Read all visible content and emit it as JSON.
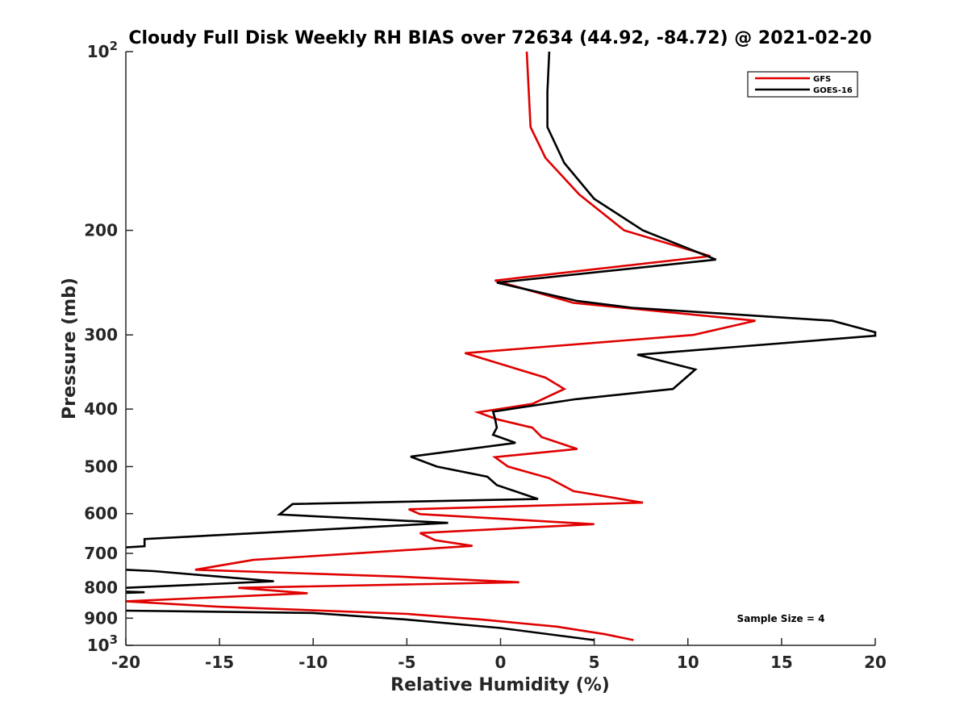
{
  "chart_data": {
    "type": "line",
    "title": "Cloudy Full Disk Weekly RH BIAS over 72634 (44.92, -84.72) @ 2021-02-20",
    "xlabel": "Relative Humidity (%)",
    "ylabel": "Pressure (mb)",
    "xlim": [
      -20,
      20
    ],
    "ylim": [
      100,
      1000
    ],
    "y_scale": "log",
    "y_reversed": true,
    "grid": false,
    "legend_position": "top-right",
    "x_ticks": [
      "-20",
      "-15",
      "-10",
      "-5",
      "0",
      "5",
      "10",
      "15",
      "20"
    ],
    "y_ticks": [
      {
        "value": 100,
        "base": "10",
        "exp": "2"
      },
      {
        "value": 200,
        "label": "200"
      },
      {
        "value": 300,
        "label": "300"
      },
      {
        "value": 400,
        "label": "400"
      },
      {
        "value": 500,
        "label": "500"
      },
      {
        "value": 600,
        "label": "600"
      },
      {
        "value": 700,
        "label": "700"
      },
      {
        "value": 800,
        "label": "800"
      },
      {
        "value": 900,
        "label": "900"
      },
      {
        "value": 1000,
        "base": "10",
        "exp": "3"
      }
    ],
    "annotation": "Sample Size = 4",
    "series": [
      {
        "name": "GFS",
        "color": "#e00000",
        "points": [
          [
            1.4,
            100
          ],
          [
            1.6,
            134
          ],
          [
            2.4,
            151
          ],
          [
            4.2,
            174
          ],
          [
            6.6,
            200
          ],
          [
            11.2,
            221
          ],
          [
            -0.3,
            243
          ],
          [
            3.9,
            265
          ],
          [
            13.6,
            284
          ],
          [
            10.3,
            300
          ],
          [
            -1.9,
            322
          ],
          [
            2.4,
            354
          ],
          [
            3.4,
            370
          ],
          [
            1.7,
            392
          ],
          [
            -1.2,
            405
          ],
          [
            -0.2,
            416
          ],
          [
            1.7,
            430
          ],
          [
            2.2,
            446
          ],
          [
            4.1,
            467
          ],
          [
            -0.3,
            482
          ],
          [
            0.4,
            500
          ],
          [
            2.6,
            523
          ],
          [
            3.9,
            550
          ],
          [
            7.6,
            575
          ],
          [
            -4.9,
            590
          ],
          [
            -4.3,
            601
          ],
          [
            5.0,
            625
          ],
          [
            -4.3,
            647
          ],
          [
            -3.5,
            665
          ],
          [
            -1.5,
            680
          ],
          [
            -13.2,
            718
          ],
          [
            -16.3,
            746
          ],
          [
            -5.4,
            766
          ],
          [
            1.0,
            783
          ],
          [
            -14.0,
            800
          ],
          [
            -10.3,
            817
          ],
          [
            -20.0,
            843
          ],
          [
            -15.0,
            861
          ],
          [
            -5.0,
            885
          ],
          [
            -1.0,
            905
          ],
          [
            3.0,
            930
          ],
          [
            5.6,
            958
          ],
          [
            7.1,
            980
          ]
        ]
      },
      {
        "name": "GOES-16",
        "color": "#000000",
        "points": [
          [
            2.6,
            100
          ],
          [
            2.5,
            117
          ],
          [
            2.5,
            134
          ],
          [
            3.4,
            154
          ],
          [
            5.0,
            177
          ],
          [
            7.6,
            200
          ],
          [
            11.5,
            224
          ],
          [
            -0.2,
            245
          ],
          [
            4.1,
            263
          ],
          [
            7.0,
            270
          ],
          [
            17.7,
            284
          ],
          [
            20.0,
            297
          ],
          [
            20.0,
            301
          ],
          [
            7.3,
            324
          ],
          [
            10.4,
            343
          ],
          [
            9.2,
            370
          ],
          [
            4.0,
            385
          ],
          [
            -0.4,
            404
          ],
          [
            -0.3,
            414
          ],
          [
            -0.2,
            430
          ],
          [
            -0.4,
            442
          ],
          [
            0.8,
            456
          ],
          [
            -4.8,
            481
          ],
          [
            -3.4,
            500
          ],
          [
            -0.7,
            520
          ],
          [
            -0.2,
            537
          ],
          [
            2.0,
            567
          ],
          [
            -11.1,
            578
          ],
          [
            -11.8,
            602
          ],
          [
            -2.8,
            622
          ],
          [
            -13.0,
            647
          ],
          [
            -19.0,
            662
          ],
          [
            -19.0,
            681
          ],
          [
            -20.0,
            684
          ]
        ]
      },
      {
        "name": "",
        "color": "#000000",
        "points": [
          [
            -20.0,
            746
          ],
          [
            -18.5,
            750
          ],
          [
            -12.1,
            780
          ],
          [
            -20.0,
            800
          ]
        ]
      },
      {
        "name": "",
        "color": "#000000",
        "points": [
          [
            -20.0,
            812
          ],
          [
            -19.0,
            814
          ],
          [
            -20.0,
            816
          ]
        ]
      },
      {
        "name": "",
        "color": "#000000",
        "points": [
          [
            -20.0,
            874
          ],
          [
            -10.0,
            882
          ],
          [
            -5.0,
            905
          ],
          [
            0.0,
            935
          ],
          [
            5.0,
            980
          ]
        ]
      }
    ]
  }
}
